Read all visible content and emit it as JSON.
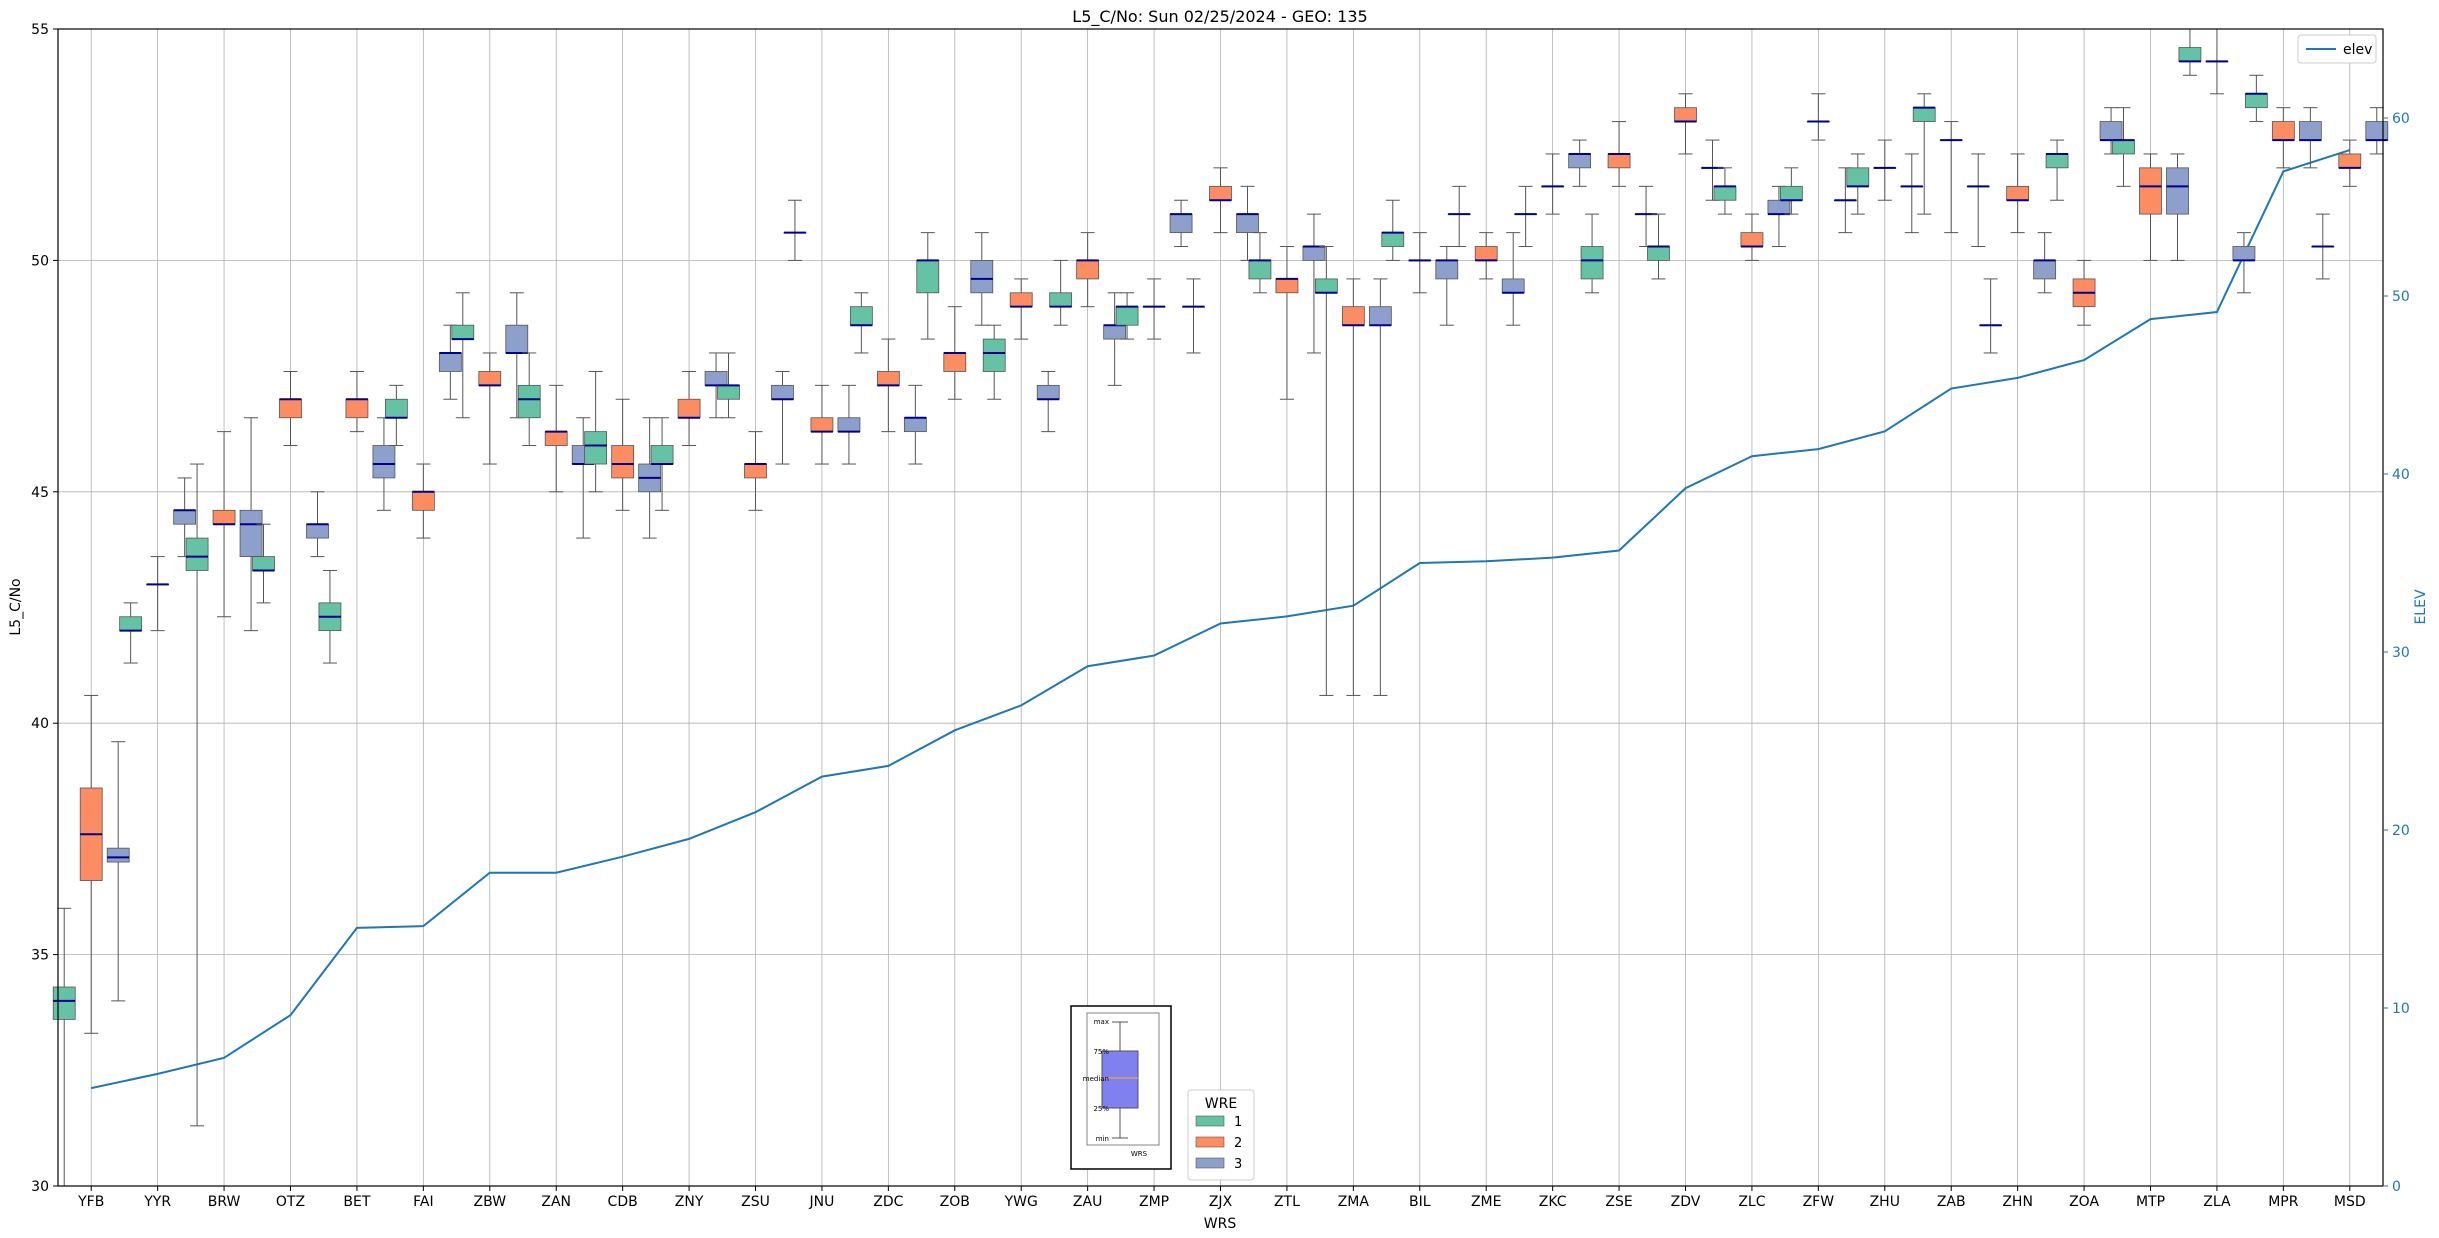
{
  "chart_data": {
    "type": "box",
    "title": "L5_C/No: Sun 02/25/2024 - GEO: 135",
    "xlabel": "WRS",
    "ylabel": "L5_C/No",
    "y2label": "ELEV",
    "ylim": [
      30,
      55
    ],
    "y2lim": [
      0,
      65
    ],
    "yticks": [
      30,
      35,
      40,
      45,
      50,
      55
    ],
    "y2ticks": [
      0,
      10,
      20,
      30,
      40,
      50,
      60
    ],
    "grid": true,
    "colors": {
      "1": "#66c2a5",
      "2": "#fc8d62",
      "3": "#8da0cb",
      "median": "#00008b",
      "elev": "#1f77b4",
      "axis2": "#1f77b4"
    },
    "legend_elev": {
      "label": "elev",
      "placement": "top-right"
    },
    "legend_wre": {
      "title": "WRE",
      "entries": [
        "1",
        "2",
        "3"
      ],
      "placement": "bottom-center"
    },
    "key_box": {
      "labels": [
        "max",
        "75%",
        "median",
        "25%",
        "min"
      ],
      "caption": "WRS"
    },
    "categories": [
      "YFB",
      "YYR",
      "BRW",
      "OTZ",
      "BET",
      "FAI",
      "ZBW",
      "ZAN",
      "CDB",
      "ZNY",
      "ZSU",
      "JNU",
      "ZDC",
      "ZOB",
      "YWG",
      "ZAU",
      "ZMP",
      "ZJX",
      "ZTL",
      "ZMA",
      "BIL",
      "ZME",
      "ZKC",
      "ZSE",
      "ZDV",
      "ZLC",
      "ZFW",
      "ZHU",
      "ZAB",
      "ZHN",
      "ZOA",
      "MTP",
      "ZLA",
      "MPR",
      "MSD"
    ],
    "elev": [
      5.5,
      6.3,
      7.2,
      9.6,
      14.5,
      14.6,
      17.6,
      17.6,
      18.5,
      19.5,
      21.0,
      23.0,
      23.6,
      25.6,
      27.0,
      29.2,
      29.8,
      31.6,
      32.0,
      32.6,
      35.0,
      35.1,
      35.3,
      35.7,
      39.2,
      41.0,
      41.4,
      42.4,
      44.8,
      45.4,
      46.4,
      48.7,
      49.1,
      57.0,
      58.2
    ],
    "boxes": [
      {
        "cat": "YFB",
        "wre": 1,
        "min": 30.0,
        "q1": 33.6,
        "med": 34.0,
        "q3": 34.3,
        "max": 36.0
      },
      {
        "cat": "YFB",
        "wre": 2,
        "min": 33.3,
        "q1": 36.6,
        "med": 37.6,
        "q3": 38.6,
        "max": 40.6
      },
      {
        "cat": "YFB",
        "wre": 3,
        "min": 34.0,
        "q1": 37.0,
        "med": 37.1,
        "q3": 37.3,
        "max": 39.6
      },
      {
        "cat": "YYR",
        "wre": 1,
        "min": 41.3,
        "q1": 42.0,
        "med": 42.0,
        "q3": 42.3,
        "max": 42.6
      },
      {
        "cat": "YYR",
        "wre": 2,
        "min": 42.0,
        "q1": 43.0,
        "med": 43.0,
        "q3": 43.0,
        "max": 43.6
      },
      {
        "cat": "YYR",
        "wre": 3,
        "min": 43.6,
        "q1": 44.3,
        "med": 44.6,
        "q3": 44.6,
        "max": 45.3
      },
      {
        "cat": "BRW",
        "wre": 1,
        "min": 31.3,
        "q1": 43.3,
        "med": 43.6,
        "q3": 44.0,
        "max": 45.6
      },
      {
        "cat": "BRW",
        "wre": 2,
        "min": 42.3,
        "q1": 44.3,
        "med": 44.3,
        "q3": 44.6,
        "max": 46.3
      },
      {
        "cat": "BRW",
        "wre": 3,
        "min": 42.0,
        "q1": 43.6,
        "med": 44.3,
        "q3": 44.6,
        "max": 46.6
      },
      {
        "cat": "OTZ",
        "wre": 1,
        "min": 42.6,
        "q1": 43.3,
        "med": 43.3,
        "q3": 43.6,
        "max": 44.3
      },
      {
        "cat": "OTZ",
        "wre": 2,
        "min": 46.0,
        "q1": 46.6,
        "med": 47.0,
        "q3": 47.0,
        "max": 47.6
      },
      {
        "cat": "OTZ",
        "wre": 3,
        "min": 43.6,
        "q1": 44.0,
        "med": 44.3,
        "q3": 44.3,
        "max": 45.0
      },
      {
        "cat": "BET",
        "wre": 1,
        "min": 41.3,
        "q1": 42.0,
        "med": 42.3,
        "q3": 42.6,
        "max": 43.3
      },
      {
        "cat": "BET",
        "wre": 2,
        "min": 46.3,
        "q1": 46.6,
        "med": 47.0,
        "q3": 47.0,
        "max": 47.6
      },
      {
        "cat": "BET",
        "wre": 3,
        "min": 44.6,
        "q1": 45.3,
        "med": 45.6,
        "q3": 46.0,
        "max": 46.6
      },
      {
        "cat": "FAI",
        "wre": 1,
        "min": 46.0,
        "q1": 46.6,
        "med": 46.6,
        "q3": 47.0,
        "max": 47.3
      },
      {
        "cat": "FAI",
        "wre": 2,
        "min": 44.0,
        "q1": 44.6,
        "med": 45.0,
        "q3": 45.0,
        "max": 45.6
      },
      {
        "cat": "FAI",
        "wre": 3,
        "min": 47.0,
        "q1": 47.6,
        "med": 48.0,
        "q3": 48.0,
        "max": 48.6
      },
      {
        "cat": "ZBW",
        "wre": 1,
        "min": 46.6,
        "q1": 48.3,
        "med": 48.3,
        "q3": 48.6,
        "max": 49.3
      },
      {
        "cat": "ZBW",
        "wre": 2,
        "min": 45.6,
        "q1": 47.3,
        "med": 47.3,
        "q3": 47.6,
        "max": 48.0
      },
      {
        "cat": "ZBW",
        "wre": 3,
        "min": 46.6,
        "q1": 48.0,
        "med": 48.0,
        "q3": 48.6,
        "max": 49.3
      },
      {
        "cat": "ZAN",
        "wre": 1,
        "min": 46.0,
        "q1": 46.6,
        "med": 47.0,
        "q3": 47.3,
        "max": 48.0
      },
      {
        "cat": "ZAN",
        "wre": 2,
        "min": 45.0,
        "q1": 46.0,
        "med": 46.3,
        "q3": 46.3,
        "max": 47.3
      },
      {
        "cat": "ZAN",
        "wre": 3,
        "min": 44.0,
        "q1": 45.6,
        "med": 45.6,
        "q3": 46.0,
        "max": 46.6
      },
      {
        "cat": "CDB",
        "wre": 1,
        "min": 45.0,
        "q1": 45.6,
        "med": 46.0,
        "q3": 46.3,
        "max": 47.6
      },
      {
        "cat": "CDB",
        "wre": 2,
        "min": 44.6,
        "q1": 45.3,
        "med": 45.6,
        "q3": 46.0,
        "max": 47.0
      },
      {
        "cat": "CDB",
        "wre": 3,
        "min": 44.0,
        "q1": 45.0,
        "med": 45.3,
        "q3": 45.6,
        "max": 46.6
      },
      {
        "cat": "ZNY",
        "wre": 1,
        "min": 44.6,
        "q1": 45.6,
        "med": 45.6,
        "q3": 46.0,
        "max": 46.6
      },
      {
        "cat": "ZNY",
        "wre": 2,
        "min": 46.0,
        "q1": 46.6,
        "med": 46.6,
        "q3": 47.0,
        "max": 47.6
      },
      {
        "cat": "ZNY",
        "wre": 3,
        "min": 46.6,
        "q1": 47.3,
        "med": 47.3,
        "q3": 47.6,
        "max": 48.0
      },
      {
        "cat": "ZSU",
        "wre": 1,
        "min": 46.6,
        "q1": 47.0,
        "med": 47.3,
        "q3": 47.3,
        "max": 48.0
      },
      {
        "cat": "ZSU",
        "wre": 2,
        "min": 44.6,
        "q1": 45.3,
        "med": 45.6,
        "q3": 45.6,
        "max": 46.3
      },
      {
        "cat": "ZSU",
        "wre": 3,
        "min": 45.6,
        "q1": 47.0,
        "med": 47.0,
        "q3": 47.3,
        "max": 47.6
      },
      {
        "cat": "JNU",
        "wre": 1,
        "min": 50.0,
        "q1": 50.6,
        "med": 50.6,
        "q3": 50.6,
        "max": 51.3
      },
      {
        "cat": "JNU",
        "wre": 2,
        "min": 45.6,
        "q1": 46.3,
        "med": 46.3,
        "q3": 46.6,
        "max": 47.3
      },
      {
        "cat": "JNU",
        "wre": 3,
        "min": 45.6,
        "q1": 46.3,
        "med": 46.3,
        "q3": 46.6,
        "max": 47.3
      },
      {
        "cat": "ZDC",
        "wre": 1,
        "min": 48.0,
        "q1": 48.6,
        "med": 48.6,
        "q3": 49.0,
        "max": 49.3
      },
      {
        "cat": "ZDC",
        "wre": 2,
        "min": 46.3,
        "q1": 47.3,
        "med": 47.3,
        "q3": 47.6,
        "max": 48.3
      },
      {
        "cat": "ZDC",
        "wre": 3,
        "min": 45.6,
        "q1": 46.3,
        "med": 46.6,
        "q3": 46.6,
        "max": 47.3
      },
      {
        "cat": "ZOB",
        "wre": 1,
        "min": 48.3,
        "q1": 49.3,
        "med": 50.0,
        "q3": 50.0,
        "max": 50.6
      },
      {
        "cat": "ZOB",
        "wre": 2,
        "min": 47.0,
        "q1": 47.6,
        "med": 48.0,
        "q3": 48.0,
        "max": 49.0
      },
      {
        "cat": "ZOB",
        "wre": 3,
        "min": 48.6,
        "q1": 49.3,
        "med": 49.6,
        "q3": 50.0,
        "max": 50.6
      },
      {
        "cat": "YWG",
        "wre": 1,
        "min": 47.0,
        "q1": 47.6,
        "med": 48.0,
        "q3": 48.3,
        "max": 48.6
      },
      {
        "cat": "YWG",
        "wre": 2,
        "min": 48.3,
        "q1": 49.0,
        "med": 49.0,
        "q3": 49.3,
        "max": 49.6
      },
      {
        "cat": "YWG",
        "wre": 3,
        "min": 46.3,
        "q1": 47.0,
        "med": 47.0,
        "q3": 47.3,
        "max": 47.6
      },
      {
        "cat": "ZAU",
        "wre": 1,
        "min": 48.6,
        "q1": 49.0,
        "med": 49.0,
        "q3": 49.3,
        "max": 50.0
      },
      {
        "cat": "ZAU",
        "wre": 2,
        "min": 49.0,
        "q1": 49.6,
        "med": 50.0,
        "q3": 50.0,
        "max": 50.6
      },
      {
        "cat": "ZAU",
        "wre": 3,
        "min": 47.3,
        "q1": 48.3,
        "med": 48.6,
        "q3": 48.6,
        "max": 49.3
      },
      {
        "cat": "ZMP",
        "wre": 1,
        "min": 48.3,
        "q1": 48.6,
        "med": 49.0,
        "q3": 49.0,
        "max": 49.3
      },
      {
        "cat": "ZMP",
        "wre": 2,
        "min": 48.3,
        "q1": 49.0,
        "med": 49.0,
        "q3": 49.0,
        "max": 49.6
      },
      {
        "cat": "ZMP",
        "wre": 3,
        "min": 50.3,
        "q1": 50.6,
        "med": 51.0,
        "q3": 51.0,
        "max": 51.3
      },
      {
        "cat": "ZJX",
        "wre": 1,
        "min": 48.0,
        "q1": 49.0,
        "med": 49.0,
        "q3": 49.0,
        "max": 49.6
      },
      {
        "cat": "ZJX",
        "wre": 2,
        "min": 50.6,
        "q1": 51.3,
        "med": 51.3,
        "q3": 51.6,
        "max": 52.0
      },
      {
        "cat": "ZJX",
        "wre": 3,
        "min": 50.0,
        "q1": 50.6,
        "med": 51.0,
        "q3": 51.0,
        "max": 51.6
      },
      {
        "cat": "ZTL",
        "wre": 1,
        "min": 49.3,
        "q1": 49.6,
        "med": 50.0,
        "q3": 50.0,
        "max": 50.6
      },
      {
        "cat": "ZTL",
        "wre": 2,
        "min": 47.0,
        "q1": 49.3,
        "med": 49.6,
        "q3": 49.6,
        "max": 50.3
      },
      {
        "cat": "ZTL",
        "wre": 3,
        "min": 48.0,
        "q1": 50.0,
        "med": 50.3,
        "q3": 50.3,
        "max": 51.0
      },
      {
        "cat": "ZMA",
        "wre": 1,
        "min": 40.6,
        "q1": 49.3,
        "med": 49.3,
        "q3": 49.6,
        "max": 50.3
      },
      {
        "cat": "ZMA",
        "wre": 2,
        "min": 40.6,
        "q1": 48.6,
        "med": 48.6,
        "q3": 49.0,
        "max": 49.6
      },
      {
        "cat": "ZMA",
        "wre": 3,
        "min": 40.6,
        "q1": 48.6,
        "med": 48.6,
        "q3": 49.0,
        "max": 49.6
      },
      {
        "cat": "BIL",
        "wre": 1,
        "min": 50.0,
        "q1": 50.3,
        "med": 50.6,
        "q3": 50.6,
        "max": 51.3
      },
      {
        "cat": "BIL",
        "wre": 2,
        "min": 49.3,
        "q1": 50.0,
        "med": 50.0,
        "q3": 50.0,
        "max": 50.6
      },
      {
        "cat": "BIL",
        "wre": 3,
        "min": 48.6,
        "q1": 49.6,
        "med": 50.0,
        "q3": 50.0,
        "max": 50.3
      },
      {
        "cat": "ZME",
        "wre": 1,
        "min": 50.3,
        "q1": 51.0,
        "med": 51.0,
        "q3": 51.0,
        "max": 51.6
      },
      {
        "cat": "ZME",
        "wre": 2,
        "min": 49.6,
        "q1": 50.0,
        "med": 50.0,
        "q3": 50.3,
        "max": 50.6
      },
      {
        "cat": "ZME",
        "wre": 3,
        "min": 48.6,
        "q1": 49.3,
        "med": 49.3,
        "q3": 49.6,
        "max": 50.6
      },
      {
        "cat": "ZKC",
        "wre": 1,
        "min": 50.3,
        "q1": 51.0,
        "med": 51.0,
        "q3": 51.0,
        "max": 51.6
      },
      {
        "cat": "ZKC",
        "wre": 2,
        "min": 51.0,
        "q1": 51.6,
        "med": 51.6,
        "q3": 51.6,
        "max": 52.3
      },
      {
        "cat": "ZKC",
        "wre": 3,
        "min": 51.6,
        "q1": 52.0,
        "med": 52.3,
        "q3": 52.3,
        "max": 52.6
      },
      {
        "cat": "ZSE",
        "wre": 1,
        "min": 49.3,
        "q1": 49.6,
        "med": 50.0,
        "q3": 50.3,
        "max": 51.0
      },
      {
        "cat": "ZSE",
        "wre": 2,
        "min": 51.6,
        "q1": 52.0,
        "med": 52.3,
        "q3": 52.3,
        "max": 53.0
      },
      {
        "cat": "ZSE",
        "wre": 3,
        "min": 50.3,
        "q1": 51.0,
        "med": 51.0,
        "q3": 51.0,
        "max": 51.6
      },
      {
        "cat": "ZDV",
        "wre": 1,
        "min": 49.6,
        "q1": 50.0,
        "med": 50.3,
        "q3": 50.3,
        "max": 51.0
      },
      {
        "cat": "ZDV",
        "wre": 2,
        "min": 52.3,
        "q1": 53.0,
        "med": 53.0,
        "q3": 53.3,
        "max": 53.6
      },
      {
        "cat": "ZDV",
        "wre": 3,
        "min": 51.3,
        "q1": 52.0,
        "med": 52.0,
        "q3": 52.0,
        "max": 52.6
      },
      {
        "cat": "ZLC",
        "wre": 1,
        "min": 51.0,
        "q1": 51.3,
        "med": 51.6,
        "q3": 51.6,
        "max": 52.0
      },
      {
        "cat": "ZLC",
        "wre": 2,
        "min": 50.0,
        "q1": 50.3,
        "med": 50.3,
        "q3": 50.6,
        "max": 51.0
      },
      {
        "cat": "ZLC",
        "wre": 3,
        "min": 50.3,
        "q1": 51.0,
        "med": 51.0,
        "q3": 51.3,
        "max": 51.6
      },
      {
        "cat": "ZFW",
        "wre": 1,
        "min": 51.0,
        "q1": 51.3,
        "med": 51.3,
        "q3": 51.6,
        "max": 52.0
      },
      {
        "cat": "ZFW",
        "wre": 2,
        "min": 52.6,
        "q1": 53.0,
        "med": 53.0,
        "q3": 53.0,
        "max": 53.6
      },
      {
        "cat": "ZFW",
        "wre": 3,
        "min": 50.6,
        "q1": 51.3,
        "med": 51.3,
        "q3": 51.3,
        "max": 52.0
      },
      {
        "cat": "ZHU",
        "wre": 1,
        "min": 51.0,
        "q1": 51.6,
        "med": 51.6,
        "q3": 52.0,
        "max": 52.3
      },
      {
        "cat": "ZHU",
        "wre": 2,
        "min": 51.3,
        "q1": 52.0,
        "med": 52.0,
        "q3": 52.0,
        "max": 52.6
      },
      {
        "cat": "ZHU",
        "wre": 3,
        "min": 50.6,
        "q1": 51.6,
        "med": 51.6,
        "q3": 51.6,
        "max": 52.3
      },
      {
        "cat": "ZAB",
        "wre": 1,
        "min": 51.0,
        "q1": 53.0,
        "med": 53.3,
        "q3": 53.3,
        "max": 53.6
      },
      {
        "cat": "ZAB",
        "wre": 2,
        "min": 50.6,
        "q1": 52.6,
        "med": 52.6,
        "q3": 52.6,
        "max": 53.0
      },
      {
        "cat": "ZAB",
        "wre": 3,
        "min": 50.3,
        "q1": 51.6,
        "med": 51.6,
        "q3": 51.6,
        "max": 52.3
      },
      {
        "cat": "ZHN",
        "wre": 1,
        "min": 48.0,
        "q1": 48.6,
        "med": 48.6,
        "q3": 48.6,
        "max": 49.6
      },
      {
        "cat": "ZHN",
        "wre": 2,
        "min": 50.6,
        "q1": 51.3,
        "med": 51.3,
        "q3": 51.6,
        "max": 52.3
      },
      {
        "cat": "ZHN",
        "wre": 3,
        "min": 49.3,
        "q1": 49.6,
        "med": 50.0,
        "q3": 50.0,
        "max": 50.6
      },
      {
        "cat": "ZOA",
        "wre": 1,
        "min": 51.3,
        "q1": 52.0,
        "med": 52.3,
        "q3": 52.3,
        "max": 52.6
      },
      {
        "cat": "ZOA",
        "wre": 2,
        "min": 48.6,
        "q1": 49.0,
        "med": 49.3,
        "q3": 49.6,
        "max": 50.0
      },
      {
        "cat": "ZOA",
        "wre": 3,
        "min": 52.3,
        "q1": 52.6,
        "med": 52.6,
        "q3": 53.0,
        "max": 53.3
      },
      {
        "cat": "MTP",
        "wre": 1,
        "min": 51.6,
        "q1": 52.3,
        "med": 52.6,
        "q3": 52.6,
        "max": 53.3
      },
      {
        "cat": "MTP",
        "wre": 2,
        "min": 50.0,
        "q1": 51.0,
        "med": 51.6,
        "q3": 52.0,
        "max": 52.3
      },
      {
        "cat": "MTP",
        "wre": 3,
        "min": 50.0,
        "q1": 51.0,
        "med": 51.6,
        "q3": 52.0,
        "max": 52.3
      },
      {
        "cat": "ZLA",
        "wre": 1,
        "min": 54.0,
        "q1": 54.3,
        "med": 54.3,
        "q3": 54.6,
        "max": 55.0
      },
      {
        "cat": "ZLA",
        "wre": 2,
        "min": 53.6,
        "q1": 54.3,
        "med": 54.3,
        "q3": 54.3,
        "max": 55.0
      },
      {
        "cat": "ZLA",
        "wre": 3,
        "min": 49.3,
        "q1": 50.0,
        "med": 50.0,
        "q3": 50.3,
        "max": 50.6
      },
      {
        "cat": "MPR",
        "wre": 1,
        "min": 53.0,
        "q1": 53.3,
        "med": 53.6,
        "q3": 53.6,
        "max": 54.0
      },
      {
        "cat": "MPR",
        "wre": 2,
        "min": 52.0,
        "q1": 52.6,
        "med": 52.6,
        "q3": 53.0,
        "max": 53.3
      },
      {
        "cat": "MPR",
        "wre": 3,
        "min": 52.0,
        "q1": 52.6,
        "med": 52.6,
        "q3": 53.0,
        "max": 53.3
      },
      {
        "cat": "MSD",
        "wre": 1,
        "min": 49.6,
        "q1": 50.3,
        "med": 50.3,
        "q3": 50.3,
        "max": 51.0
      },
      {
        "cat": "MSD",
        "wre": 2,
        "min": 51.6,
        "q1": 52.0,
        "med": 52.0,
        "q3": 52.3,
        "max": 52.6
      },
      {
        "cat": "MSD",
        "wre": 3,
        "min": 52.3,
        "q1": 52.6,
        "med": 52.6,
        "q3": 53.0,
        "max": 53.3
      }
    ]
  }
}
